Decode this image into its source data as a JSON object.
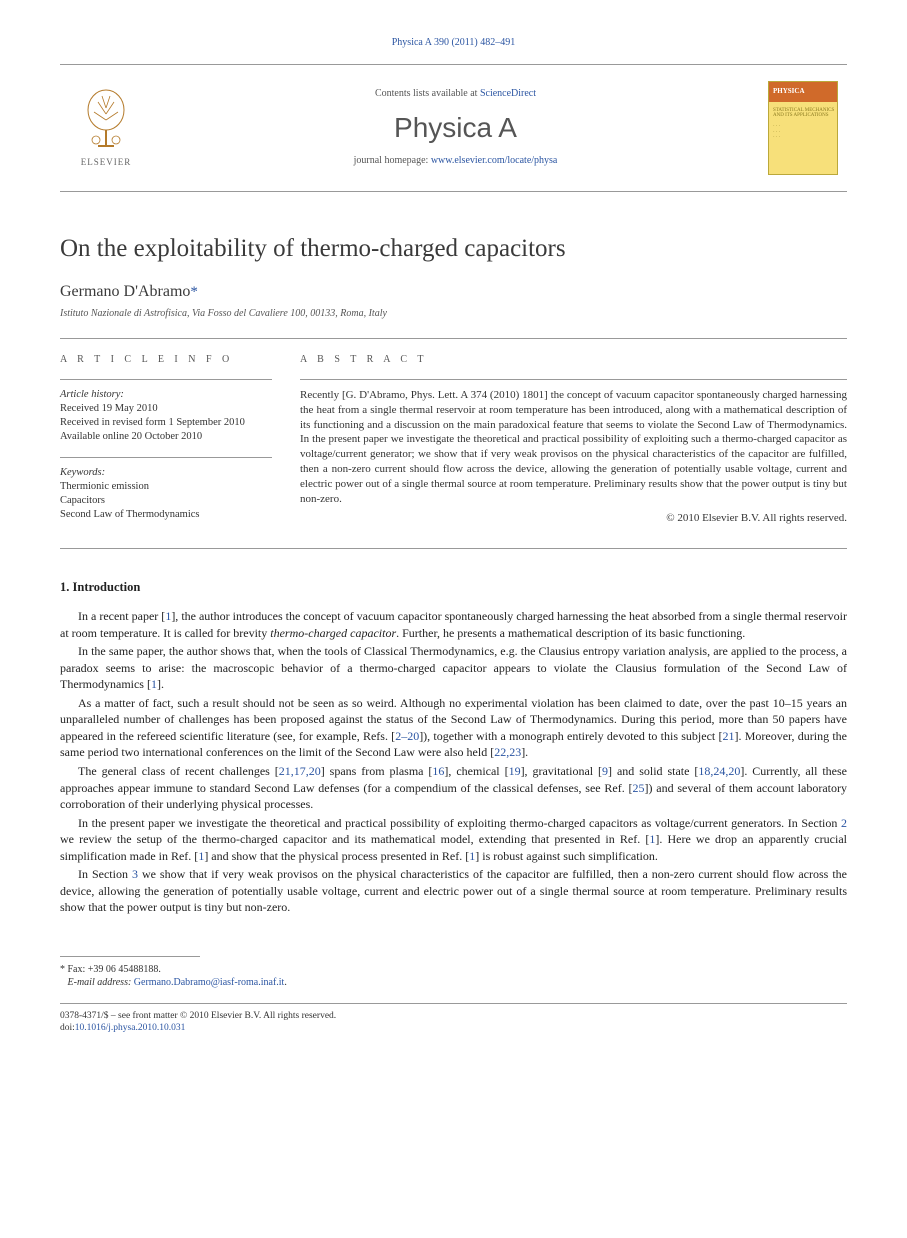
{
  "runhead": "Physica A 390 (2011) 482–491",
  "masthead": {
    "contents_prefix": "Contents lists available at ",
    "contents_link": "ScienceDirect",
    "journal": "Physica A",
    "homepage_prefix": "journal homepage: ",
    "homepage_link": "www.elsevier.com/locate/physa",
    "publisher_label": "ELSEVIER",
    "cover_label": "PHYSICA"
  },
  "article": {
    "title": "On the exploitability of thermo-charged capacitors",
    "author": "Germano D'Abramo",
    "corr_mark": "*",
    "affiliation": "Istituto Nazionale di Astrofisica, Via Fosso del Cavaliere 100, 00133, Roma, Italy"
  },
  "info": {
    "heading": "A R T I C L E   I N F O",
    "history_label": "Article history:",
    "history_lines": [
      "Received 19 May 2010",
      "Received in revised form 1 September 2010",
      "Available online 20 October 2010"
    ],
    "keywords_label": "Keywords:",
    "keywords": [
      "Thermionic emission",
      "Capacitors",
      "Second Law of Thermodynamics"
    ]
  },
  "abstract": {
    "heading": "A B S T R A C T",
    "text": "Recently [G. D'Abramo, Phys. Lett. A 374 (2010) 1801] the concept of vacuum capacitor spontaneously charged harnessing the heat from a single thermal reservoir at room temperature has been introduced, along with a mathematical description of its functioning and a discussion on the main paradoxical feature that seems to violate the Second Law of Thermodynamics. In the present paper we investigate the theoretical and practical possibility of exploiting such a thermo-charged capacitor as voltage/current generator; we show that if very weak provisos on the physical characteristics of the capacitor are fulfilled, then a non-zero current should flow across the device, allowing the generation of potentially usable voltage, current and electric power out of a single thermal source at room temperature. Preliminary results show that the power output is tiny but non-zero.",
    "copyright": "© 2010 Elsevier B.V. All rights reserved."
  },
  "section1": {
    "heading": "1. Introduction",
    "paragraphs": [
      "In a recent paper [<ref>1</ref>], the author introduces the concept of vacuum capacitor spontaneously charged harnessing the heat absorbed from a single thermal reservoir at room temperature. It is called for brevity <i>thermo-charged capacitor</i>. Further, he presents a mathematical description of its basic functioning.",
      "In the same paper, the author shows that, when the tools of Classical Thermodynamics, e.g. the Clausius entropy variation analysis, are applied to the process, a paradox seems to arise: the macroscopic behavior of a thermo-charged capacitor appears to violate the Clausius formulation of the Second Law of Thermodynamics [<ref>1</ref>].",
      "As a matter of fact, such a result should not be seen as so weird. Although no experimental violation has been claimed to date, over the past 10–15 years an unparalleled number of challenges has been proposed against the status of the Second Law of Thermodynamics. During this period, more than 50 papers have appeared in the refereed scientific literature (see, for example, Refs. [<ref>2–20</ref>]), together with a monograph entirely devoted to this subject [<ref>21</ref>]. Moreover, during the same period two international conferences on the limit of the Second Law were also held [<ref>22,23</ref>].",
      "The general class of recent challenges [<ref>21,17,20</ref>] spans from plasma [<ref>16</ref>], chemical [<ref>19</ref>], gravitational [<ref>9</ref>] and solid state [<ref>18,24,20</ref>]. Currently, all these approaches appear immune to standard Second Law defenses (for a compendium of the classical defenses, see Ref. [<ref>25</ref>]) and several of them account laboratory corroboration of their underlying physical processes.",
      "In the present paper we investigate the theoretical and practical possibility of exploiting thermo-charged capacitors as voltage/current generators. In Section <sec>2</sec> we review the setup of the thermo-charged capacitor and its mathematical model, extending that presented in Ref. [<ref>1</ref>]. Here we drop an apparently crucial simplification made in Ref. [<ref>1</ref>] and show that the physical process presented in Ref. [<ref>1</ref>] is robust against such simplification.",
      "In Section <sec>3</sec> we show that if very weak provisos on the physical characteristics of the capacitor are fulfilled, then a non-zero current should flow across the device, allowing the generation of potentially usable voltage, current and electric power out of a single thermal source at room temperature. Preliminary results show that the power output is tiny but non-zero."
    ]
  },
  "footnote": {
    "mark": "*",
    "fax_label": "Fax: ",
    "fax": "+39 06 45488188.",
    "email_label": "E-mail address: ",
    "email": "Germano.Dabramo@iasf-roma.inaf.it",
    "email_suffix": "."
  },
  "footer": {
    "line1": "0378-4371/$ – see front matter © 2010 Elsevier B.V. All rights reserved.",
    "doi_label": "doi:",
    "doi": "10.1016/j.physa.2010.10.031"
  },
  "colors": {
    "link": "#2b55a2",
    "text": "#222222",
    "muted": "#555555",
    "rule": "#999999",
    "cover_bg": "#f7e07a",
    "cover_bar": "#d06a2a"
  }
}
